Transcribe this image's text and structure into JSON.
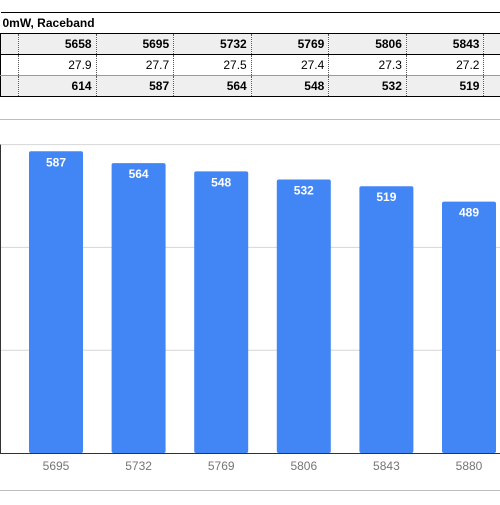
{
  "sheet": {
    "title": "0mW, Raceband",
    "header_row": [
      "5658",
      "5695",
      "5732",
      "5769",
      "5806",
      "5843"
    ],
    "row2": [
      "27.9",
      "27.7",
      "27.5",
      "27.4",
      "27.3",
      "27.2"
    ],
    "row3": [
      "614",
      "587",
      "564",
      "548",
      "532",
      "519"
    ]
  },
  "chart_data": {
    "type": "bar",
    "categories": [
      "5695",
      "5732",
      "5769",
      "5806",
      "5843",
      "5880"
    ],
    "values": [
      587,
      564,
      548,
      532,
      519,
      489
    ],
    "data_labels": [
      "587",
      "564",
      "548",
      "532",
      "519",
      "489"
    ],
    "ylim": [
      0,
      600
    ],
    "grid": true,
    "bar_color": "#4285f4",
    "label_color": "#ffffff"
  }
}
